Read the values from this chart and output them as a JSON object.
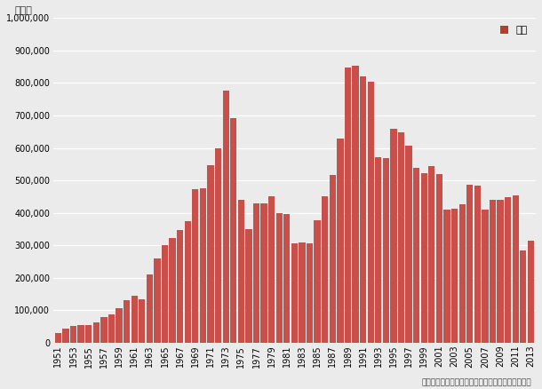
{
  "years": [
    1951,
    1952,
    1953,
    1954,
    1955,
    1956,
    1957,
    1958,
    1959,
    1960,
    1961,
    1962,
    1963,
    1964,
    1965,
    1966,
    1967,
    1968,
    1969,
    1970,
    1971,
    1972,
    1973,
    1974,
    1975,
    1976,
    1977,
    1978,
    1979,
    1980,
    1981,
    1982,
    1983,
    1984,
    1985,
    1986,
    1987,
    1988,
    1989,
    1990,
    1991,
    1992,
    1993,
    1994,
    1995,
    1996,
    1997,
    1998,
    1999,
    2000,
    2001,
    2002,
    2003,
    2004,
    2005,
    2006,
    2007,
    2008,
    2009,
    2010,
    2011,
    2012,
    2013
  ],
  "values": [
    31457,
    44000,
    52000,
    55000,
    56000,
    63000,
    79000,
    88000,
    108000,
    130000,
    145000,
    135000,
    210000,
    260000,
    302000,
    323000,
    348000,
    375000,
    472000,
    476000,
    548000,
    599000,
    776000,
    693000,
    440000,
    351000,
    428000,
    430000,
    452000,
    400000,
    397000,
    306000,
    309000,
    305000,
    378000,
    452000,
    517000,
    630000,
    848000,
    852000,
    821000,
    803000,
    571000,
    569000,
    658000,
    648000,
    608000,
    539000,
    522000,
    545000,
    520000,
    411000,
    413000,
    426000,
    487000,
    485000,
    409000,
    440000,
    439000,
    449000,
    453000,
    285000,
    315000
  ],
  "bar_color": "#c9504a",
  "ylabel_text": "（戸）",
  "legend_label": "戸数",
  "legend_color": "#c0392b",
  "source_text": "（国土交通省「建築着工統計調査報告」より作成）",
  "ylim": [
    0,
    1000000
  ],
  "yticks": [
    0,
    100000,
    200000,
    300000,
    400000,
    500000,
    600000,
    700000,
    800000,
    900000,
    1000000
  ],
  "bg_color": "#ebebeb",
  "grid_color": "#ffffff",
  "title_fontsize": 8,
  "tick_fontsize": 7,
  "legend_fontsize": 8
}
